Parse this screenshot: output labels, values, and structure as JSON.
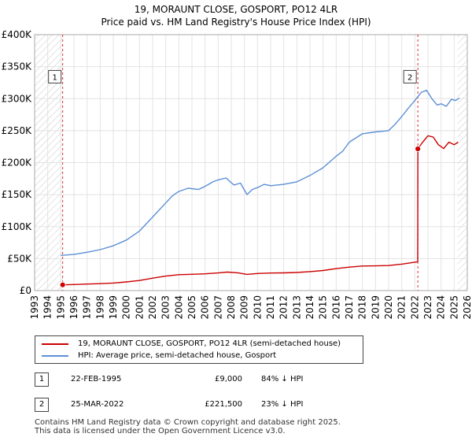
{
  "title": {
    "line1": "19, MORAUNT CLOSE, GOSPORT, PO12 4LR",
    "line2": "Price paid vs. HM Land Registry's House Price Index (HPI)"
  },
  "chart_data": {
    "type": "line",
    "title": "19, MORAUNT CLOSE, GOSPORT, PO12 4LR — Price paid vs. HM Land Registry's House Price Index (HPI)",
    "xlabel": "",
    "ylabel": "",
    "xlim": [
      1993,
      2026
    ],
    "ylim": [
      0,
      400000
    ],
    "x_ticks": [
      "1993",
      "1994",
      "1995",
      "1996",
      "1997",
      "1998",
      "1999",
      "2000",
      "2001",
      "2002",
      "2003",
      "2004",
      "2005",
      "2006",
      "2007",
      "2008",
      "2009",
      "2010",
      "2011",
      "2012",
      "2013",
      "2014",
      "2015",
      "2016",
      "2017",
      "2018",
      "2019",
      "2020",
      "2021",
      "2022",
      "2023",
      "2024",
      "2025",
      "2026"
    ],
    "y_ticks": [
      {
        "value": 0,
        "label": "£0"
      },
      {
        "value": 50000,
        "label": "£50K"
      },
      {
        "value": 100000,
        "label": "£100K"
      },
      {
        "value": 150000,
        "label": "£150K"
      },
      {
        "value": 200000,
        "label": "£200K"
      },
      {
        "value": 250000,
        "label": "£250K"
      },
      {
        "value": 300000,
        "label": "£300K"
      },
      {
        "value": 350000,
        "label": "£350K"
      },
      {
        "value": 400000,
        "label": "£400K"
      }
    ],
    "grid": true,
    "series": [
      {
        "name": "19, MORAUNT CLOSE, GOSPORT, PO12 4LR (semi-detached house)",
        "color": "#cc0000",
        "x": [
          1995.14,
          1996,
          1997,
          1998,
          1999,
          2000,
          2001,
          2002,
          2003,
          2004,
          2005,
          2006,
          2007,
          2007.7,
          2008.5,
          2009.2,
          2010,
          2011,
          2012,
          2013,
          2014,
          2015,
          2016,
          2017,
          2018,
          2019,
          2020,
          2021,
          2021.7,
          2022.22,
          2022.23,
          2022.6,
          2023,
          2023.4,
          2023.8,
          2024.2,
          2024.6,
          2025,
          2025.3
        ],
        "y": [
          9000,
          9500,
          10200,
          10800,
          11800,
          13500,
          15800,
          19500,
          22700,
          24900,
          25500,
          26200,
          27600,
          28900,
          27800,
          25300,
          26700,
          27500,
          27700,
          28300,
          29600,
          31400,
          34400,
          36700,
          38400,
          38600,
          39100,
          41300,
          43400,
          45000,
          221500,
          232000,
          242000,
          240000,
          228000,
          222000,
          232000,
          228000,
          232000
        ]
      },
      {
        "name": "HPI: Average price, semi-detached house, Gosport",
        "color": "#5b8fd6",
        "x": [
          1995,
          1996,
          1997,
          1998,
          1999,
          2000,
          2001,
          2002,
          2003,
          2003.5,
          2004,
          2004.7,
          2005.5,
          2006,
          2006.6,
          2007,
          2007.6,
          2008.2,
          2008.7,
          2009.2,
          2009.6,
          2010,
          2010.5,
          2011,
          2012,
          2013,
          2014,
          2015,
          2016,
          2016.5,
          2017,
          2018,
          2019,
          2020,
          2020.5,
          2021,
          2021.5,
          2022,
          2022.5,
          2022.9,
          2023.3,
          2023.7,
          2024,
          2024.4,
          2024.8,
          2025.1,
          2025.4
        ],
        "y": [
          55000,
          56500,
          60000,
          64000,
          70000,
          79000,
          93000,
          115000,
          137000,
          148000,
          155000,
          160000,
          158000,
          163000,
          170000,
          173000,
          176000,
          165000,
          168000,
          150000,
          158000,
          161000,
          166000,
          164000,
          166000,
          170000,
          180000,
          192000,
          210000,
          218000,
          232000,
          245000,
          248000,
          250000,
          260000,
          272000,
          285000,
          297000,
          310000,
          313000,
          300000,
          290000,
          292000,
          288000,
          299000,
          297000,
          301000
        ]
      }
    ],
    "vertical_lines": [
      {
        "x": 1995.14,
        "style": "dashed",
        "color": "#cc0000"
      },
      {
        "x": 2022.23,
        "style": "dashed",
        "color": "#cc0000"
      }
    ],
    "shaded_regions": [
      {
        "x_from": 1993,
        "x_to": 1995.14,
        "pattern": "hatch"
      },
      {
        "x_from": 2025.25,
        "x_to": 2026,
        "pattern": "hatch"
      }
    ],
    "markers": [
      {
        "id": "1",
        "x": 1995.14,
        "y": 9000,
        "label_y": 333000
      },
      {
        "id": "2",
        "x": 2022.23,
        "y": 221500,
        "label_y": 333000
      }
    ]
  },
  "legend": {
    "items": [
      {
        "label": "19, MORAUNT CLOSE, GOSPORT, PO12 4LR (semi-detached house)",
        "color": "#cc0000"
      },
      {
        "label": "HPI: Average price, semi-detached house, Gosport",
        "color": "#5b8fd6"
      }
    ]
  },
  "sales": [
    {
      "num": "1",
      "date": "22-FEB-1995",
      "price": "£9,000",
      "hpi": "84% ↓ HPI"
    },
    {
      "num": "2",
      "date": "25-MAR-2022",
      "price": "£221,500",
      "hpi": "23% ↓ HPI"
    }
  ],
  "footer": {
    "line1": "Contains HM Land Registry data © Crown copyright and database right 2025.",
    "line2": "This data is licensed under the Open Government Licence v3.0."
  }
}
